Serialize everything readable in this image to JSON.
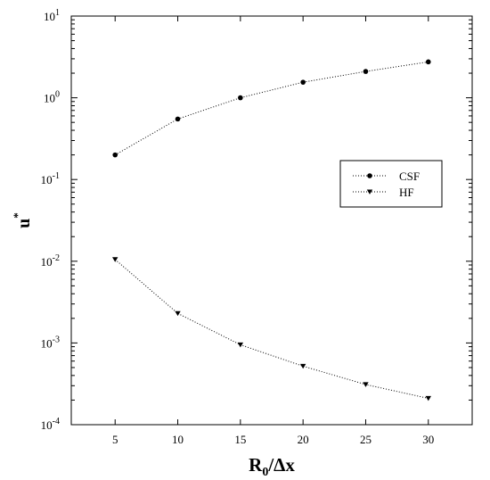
{
  "chart_data": {
    "type": "line",
    "x": [
      5,
      10,
      15,
      20,
      25,
      30
    ],
    "series": [
      {
        "name": "CSF",
        "marker": "circle",
        "values": [
          0.2,
          0.55,
          1.0,
          1.55,
          2.1,
          2.75
        ]
      },
      {
        "name": "HF",
        "marker": "triangle-down",
        "values": [
          0.0105,
          0.0023,
          0.00095,
          0.00052,
          0.00031,
          0.00021
        ]
      }
    ],
    "xlabel_main": "R",
    "xlabel_sub": "0",
    "xlabel_rest": "/Δx",
    "ylabel_main": "u",
    "ylabel_sup": "*",
    "xlim": [
      1.5,
      33.5
    ],
    "xticks": [
      {
        "value": 5,
        "label": "5"
      },
      {
        "value": 10,
        "label": "10"
      },
      {
        "value": 15,
        "label": "15"
      },
      {
        "value": 20,
        "label": "20"
      },
      {
        "value": 25,
        "label": "25"
      },
      {
        "value": 30,
        "label": "30"
      }
    ],
    "yscale": "log",
    "ylim": [
      0.0001,
      10
    ],
    "yticks": [
      {
        "value": 0.0001,
        "base": "10",
        "exp": "-4"
      },
      {
        "value": 0.001,
        "base": "10",
        "exp": "-3"
      },
      {
        "value": 0.01,
        "base": "10",
        "exp": "-2"
      },
      {
        "value": 0.1,
        "base": "10",
        "exp": "-1"
      },
      {
        "value": 1,
        "base": "10",
        "exp": "0"
      },
      {
        "value": 10,
        "base": "10",
        "exp": "1"
      }
    ],
    "grid": false,
    "line_style": "dotted",
    "legend_position": "right-middle"
  }
}
